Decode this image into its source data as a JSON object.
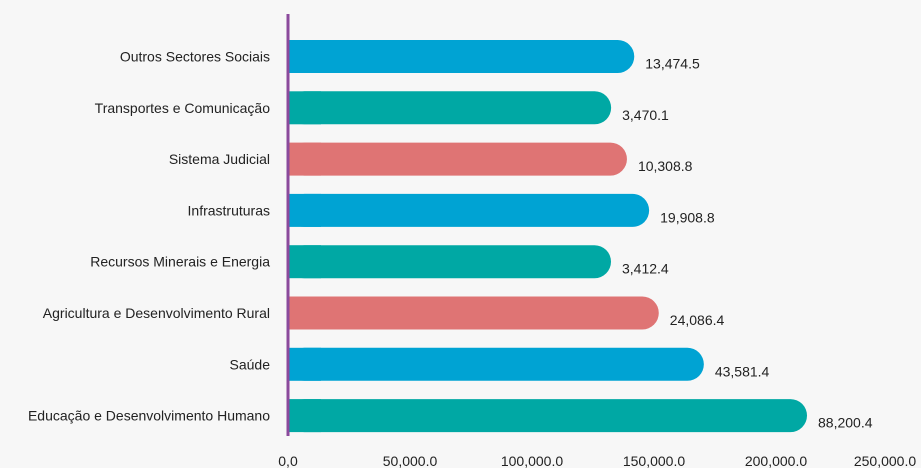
{
  "chart_data": {
    "type": "bar",
    "orientation": "horizontal",
    "categories": [
      "Outros Sectores Sociais",
      "Transportes e Comunicação",
      "Sistema Judicial",
      "Infrastruturas",
      "Recursos Minerais e Energia",
      "Agricultura e Desenvolvimento Rural",
      "Saúde",
      "Educação e Desenvolvimento Humano"
    ],
    "values": [
      13474.5,
      3470.1,
      10308.8,
      19908.8,
      3412.4,
      24086.4,
      43581.4,
      88200.4
    ],
    "value_labels": [
      "13,474.5",
      "3,470.1",
      "10,308.8",
      "19,908.8",
      "3,412.4",
      "24,086.4",
      "43,581.4",
      "88,200.4"
    ],
    "bar_colors": [
      "#00a3d3",
      "#00a8a4",
      "#df7474",
      "#00a3d3",
      "#00a8a4",
      "#df7474",
      "#00a3d3",
      "#00a8a4"
    ],
    "xticks": [
      "0,0",
      "50,000.0",
      "100,000.0",
      "150,000.0",
      "200,000.0",
      "250,000.0"
    ],
    "xlim": [
      0,
      250000
    ],
    "axis_color": "#8b4a9c",
    "grid": false,
    "title": "",
    "xlabel": "",
    "ylabel": ""
  }
}
